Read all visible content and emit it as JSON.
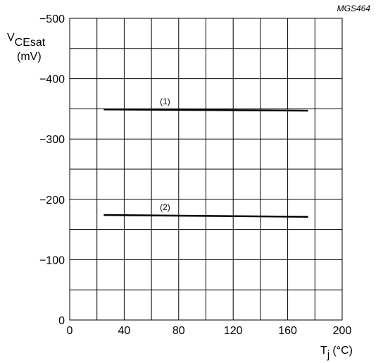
{
  "chart_data": {
    "type": "line",
    "code": "MGS464",
    "xlabel": {
      "main": "T",
      "sub": "j",
      "unit": "(°C)"
    },
    "ylabel": {
      "main": "V",
      "sub": "CEsat",
      "unit": "(mV)"
    },
    "xlim": [
      0,
      200
    ],
    "ylim": [
      0,
      -500
    ],
    "xticks": [
      0,
      40,
      80,
      120,
      160,
      200
    ],
    "xtick_labels": [
      "0",
      "40",
      "80",
      "120",
      "160",
      "200"
    ],
    "xgrid_step": 20,
    "yticks": [
      0,
      -100,
      -200,
      -300,
      -400,
      -500
    ],
    "ytick_labels": [
      "0",
      "−100",
      "−200",
      "−300",
      "−400",
      "−500"
    ],
    "ygrid_step": -50,
    "grid": true,
    "series": [
      {
        "label": "(1)",
        "x": [
          25,
          175
        ],
        "y": [
          -349,
          -347
        ]
      },
      {
        "label": "(2)",
        "x": [
          25,
          175
        ],
        "y": [
          -174,
          -171
        ]
      }
    ]
  }
}
